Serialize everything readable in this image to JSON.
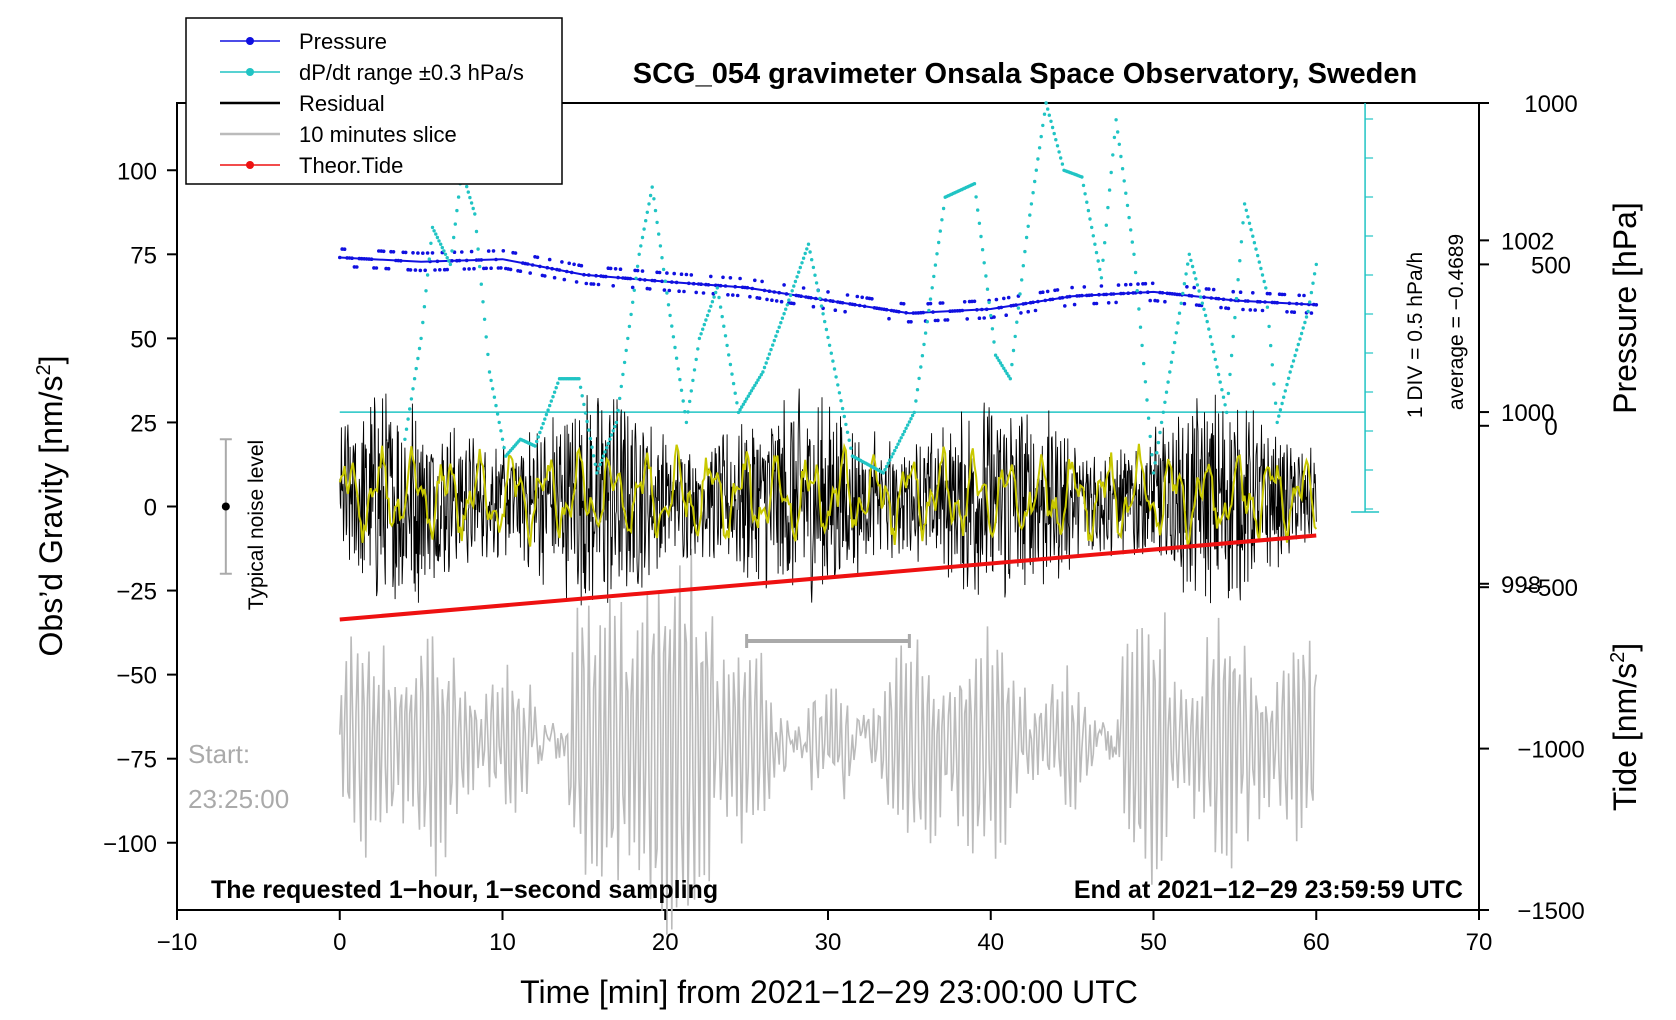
{
  "chart_data": {
    "type": "line",
    "title": "SCG_054 gravimeter Onsala Space Observatory, Sweden",
    "xlabel": "Time [min] from 2021−12−29 23:00:00 UTC",
    "ylabel_left": "Obs’d Gravity [nm/s²]",
    "ylabel_pressure": "Pressure [hPa]",
    "ylabel_tide": "Tide [nm/s²]",
    "xlim": [
      -10,
      70
    ],
    "ylim_gravity": [
      -120,
      120
    ],
    "ylim_pressure": [
      994.2,
      1003.6
    ],
    "ylim_tide": [
      -1500,
      1000
    ],
    "x_ticks": [
      {
        "v": -10,
        "label": "−10"
      },
      {
        "v": 0,
        "label": "0"
      },
      {
        "v": 10,
        "label": "10"
      },
      {
        "v": 20,
        "label": "20"
      },
      {
        "v": 30,
        "label": "30"
      },
      {
        "v": 40,
        "label": "40"
      },
      {
        "v": 50,
        "label": "50"
      },
      {
        "v": 60,
        "label": "60"
      },
      {
        "v": 70,
        "label": "70"
      }
    ],
    "gravity_ticks": [
      {
        "v": 100,
        "label": "100"
      },
      {
        "v": 75,
        "label": "75"
      },
      {
        "v": 50,
        "label": "50"
      },
      {
        "v": 25,
        "label": "25"
      },
      {
        "v": 0,
        "label": "0"
      },
      {
        "v": -25,
        "label": "−25"
      },
      {
        "v": -50,
        "label": "−50"
      },
      {
        "v": -75,
        "label": "−75"
      },
      {
        "v": -100,
        "label": "−100"
      }
    ],
    "pressure_ticks": [
      {
        "v": 1002,
        "label": "1002"
      },
      {
        "v": 1000,
        "label": "1000"
      },
      {
        "v": 998,
        "label": "998"
      }
    ],
    "tide_ticks": [
      {
        "v": 1000,
        "label": "1000"
      },
      {
        "v": 500,
        "label": "500"
      },
      {
        "v": 0,
        "label": "0"
      },
      {
        "v": -500,
        "label": "−500"
      },
      {
        "v": -1000,
        "label": "−1000"
      },
      {
        "v": -1500,
        "label": "−1500"
      }
    ],
    "legend": [
      {
        "name": "Pressure",
        "color": "#1010e0",
        "marker": true
      },
      {
        "name": "dP/dt range ±0.3 hPa/s",
        "color": "#20c4c4",
        "marker": true
      },
      {
        "name": "Residual",
        "color": "#000000",
        "marker": false
      },
      {
        "name": "10 minutes slice",
        "color": "#bbbbbb",
        "marker": false
      },
      {
        "name": "Theor.Tide",
        "color": "#ee1111",
        "marker": true
      }
    ],
    "series": [
      {
        "name": "Pressure",
        "unit": "hPa",
        "x": [
          0,
          5,
          10,
          15,
          20,
          25,
          30,
          35,
          40,
          45,
          50,
          55,
          60
        ],
        "values": [
          1001.8,
          1001.75,
          1001.78,
          1001.6,
          1001.52,
          1001.45,
          1001.3,
          1001.15,
          1001.2,
          1001.35,
          1001.4,
          1001.3,
          1001.25
        ]
      },
      {
        "name": "dP/dt",
        "unit": "hPa/h (1 DIV = 0.5)",
        "x": [
          4,
          5,
          5.7,
          6.8,
          7.5,
          8.3,
          9.2,
          10.2,
          11.1,
          12,
          13.5,
          14.7,
          15.8,
          17,
          18.4,
          19.2,
          20.2,
          21.3,
          22.1,
          23.2,
          24.5,
          26,
          27.5,
          28.8,
          29.8,
          31.5,
          33.4,
          35.3,
          37.2,
          39,
          40.3,
          41.2,
          42.2,
          43.4,
          44.5,
          45.6,
          46.8,
          47.7,
          48.8,
          50,
          51,
          52.2,
          53.3,
          54.5,
          55.6,
          56.9,
          57.6,
          58.4,
          59.5,
          60
        ],
        "values": [
          20,
          50,
          83,
          72,
          100,
          87,
          40,
          15,
          20,
          18,
          38,
          38,
          10,
          25,
          75,
          95,
          60,
          25,
          50,
          65,
          28,
          40,
          60,
          78,
          55,
          15,
          10,
          28,
          92,
          96,
          45,
          38,
          80,
          120,
          100,
          98,
          68,
          115,
          75,
          10,
          40,
          75,
          55,
          28,
          90,
          65,
          25,
          40,
          58,
          72
        ]
      },
      {
        "name": "Theor.Tide",
        "unit": "nm/s²",
        "x": [
          0,
          60
        ],
        "values": [
          -600,
          -340
        ]
      }
    ],
    "annotations": {
      "right_scale": "1 DIV = 0.5 hPa/h",
      "average": "average = −0.4689",
      "start_label": "Start:",
      "start_time": "23:25:00",
      "noise_label": "Typical noise level",
      "bottom_left": "The requested 1−hour, 1−second sampling",
      "bottom_right": "End at 2021−12−29 23:59:59 UTC",
      "slice_x_range": [
        25,
        35
      ],
      "noise_range": [
        -20,
        20
      ]
    }
  }
}
